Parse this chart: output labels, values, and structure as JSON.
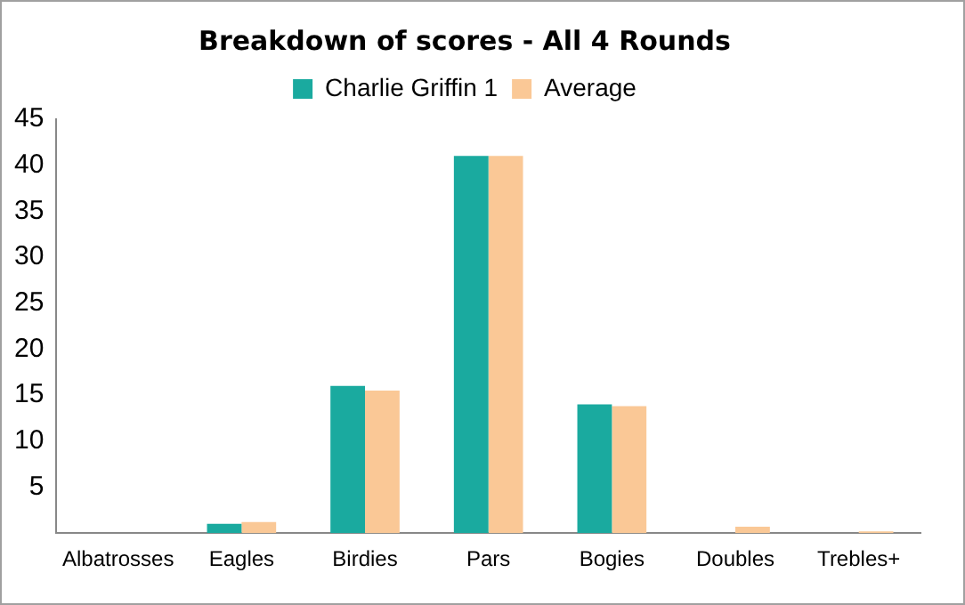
{
  "chart_data": {
    "type": "bar",
    "title": "Breakdown of scores - All 4 Rounds",
    "categories": [
      "Albatrosses",
      "Eagles",
      "Birdies",
      "Pars",
      "Bogies",
      "Doubles",
      "Trebles+"
    ],
    "series": [
      {
        "name": "Charlie Griffin 1",
        "color": "#1aaa9f",
        "values": [
          0,
          1,
          16,
          41,
          14,
          0,
          0
        ]
      },
      {
        "name": "Average",
        "color": "#fac896",
        "values": [
          0,
          1.2,
          15.5,
          41,
          13.8,
          0.7,
          0.2
        ]
      }
    ],
    "ylim": [
      0,
      45
    ],
    "yticks": [
      5,
      10,
      15,
      20,
      25,
      30,
      35,
      40,
      45
    ],
    "grid": false,
    "legend": "top"
  }
}
